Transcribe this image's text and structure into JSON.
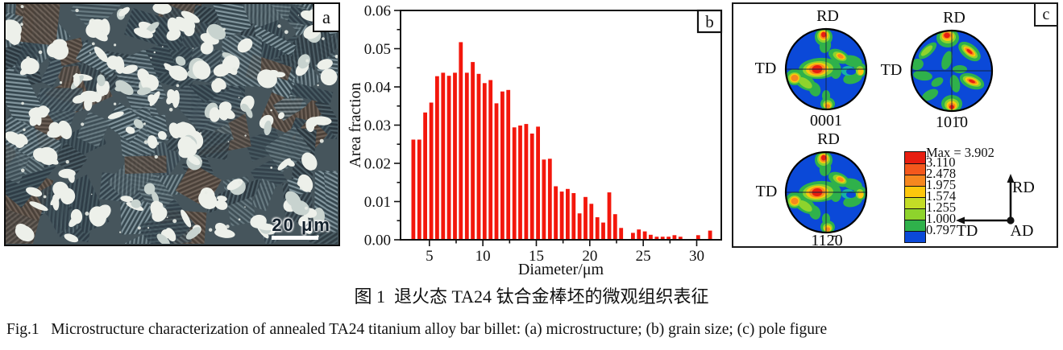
{
  "figure": {
    "caption_zh": "图 1  退火态 TA24 钛合金棒坯的微观组织表征",
    "caption_en": "Fig.1   Microstructure characterization of annealed TA24 titanium alloy bar billet: (a) microstructure; (b) grain size; (c) pole figure"
  },
  "panels": {
    "a": {
      "corner_label": "a",
      "scale_bar_text": "20 μm"
    },
    "b": {
      "corner_label": "b"
    },
    "c": {
      "corner_label": "c",
      "pole_figures": [
        {
          "top_label": "RD",
          "side_label": "TD",
          "plane_label": "0001",
          "pattern": "A"
        },
        {
          "top_label": "RD",
          "side_label": "TD",
          "plane_label": "101̄0",
          "pattern": "B"
        },
        {
          "top_label": "RD",
          "side_label": "TD",
          "plane_label": "112̄0",
          "pattern": "A"
        }
      ],
      "legend": {
        "max_label": "Max = 3.902",
        "levels": [
          "3.110",
          "2.478",
          "1.975",
          "1.574",
          "1.255",
          "1.000",
          "0.797"
        ],
        "colors": [
          "#e81e10",
          "#f4581c",
          "#f6871f",
          "#fdc70c",
          "#c3dc26",
          "#8ed32c",
          "#2fb14b",
          "#0b49d8"
        ]
      },
      "axis_triad": {
        "up_label": "RD",
        "left_label": "TD",
        "origin_label": "AD"
      }
    }
  },
  "chart_data": {
    "type": "bar",
    "title": "",
    "xlabel": "Diameter/μm",
    "ylabel": "Area fraction",
    "xlim": [
      2.3,
      32.3
    ],
    "ylim": [
      0,
      0.06
    ],
    "xticks": [
      5,
      10,
      15,
      20,
      25,
      30
    ],
    "xticks_minor": [
      7.5,
      12.5,
      17.5,
      22.5,
      27.5
    ],
    "ytick_labels": [
      "0.00",
      "0.01",
      "0.02",
      "0.03",
      "0.04",
      "0.05",
      "0.06"
    ],
    "bar_color": "#f3170c",
    "grid": false,
    "legend_position": "none",
    "x": [
      3.5,
      4.06,
      4.61,
      5.17,
      5.72,
      6.28,
      6.83,
      7.39,
      7.94,
      8.5,
      9.05,
      9.61,
      10.16,
      10.72,
      11.27,
      11.83,
      12.38,
      12.94,
      13.49,
      14.05,
      14.6,
      15.16,
      15.71,
      16.27,
      16.82,
      17.38,
      17.93,
      18.49,
      19.04,
      19.6,
      20.15,
      20.71,
      21.26,
      21.82,
      22.37,
      22.93,
      23.48,
      24.04,
      24.59,
      25.15,
      25.7,
      26.26,
      26.81,
      27.37,
      27.92,
      28.48,
      29.03,
      29.59,
      30.14,
      30.7,
      31.25
    ],
    "values": [
      0.0262,
      0.0262,
      0.0333,
      0.0359,
      0.0428,
      0.0437,
      0.0429,
      0.0437,
      0.0517,
      0.0437,
      0.0465,
      0.0434,
      0.041,
      0.0418,
      0.0357,
      0.0388,
      0.0392,
      0.0294,
      0.0299,
      0.0303,
      0.0278,
      0.0296,
      0.021,
      0.0212,
      0.014,
      0.0126,
      0.0133,
      0.0122,
      0.0069,
      0.0112,
      0.0094,
      0.0059,
      0.0045,
      0.0124,
      0.0067,
      0.0031,
      0,
      0.0018,
      0.0027,
      0.0022,
      0.0013,
      0.0008,
      0.0008,
      0.0008,
      0.0012,
      0.0008,
      0,
      0,
      0.0012,
      0,
      0.0024
    ]
  }
}
